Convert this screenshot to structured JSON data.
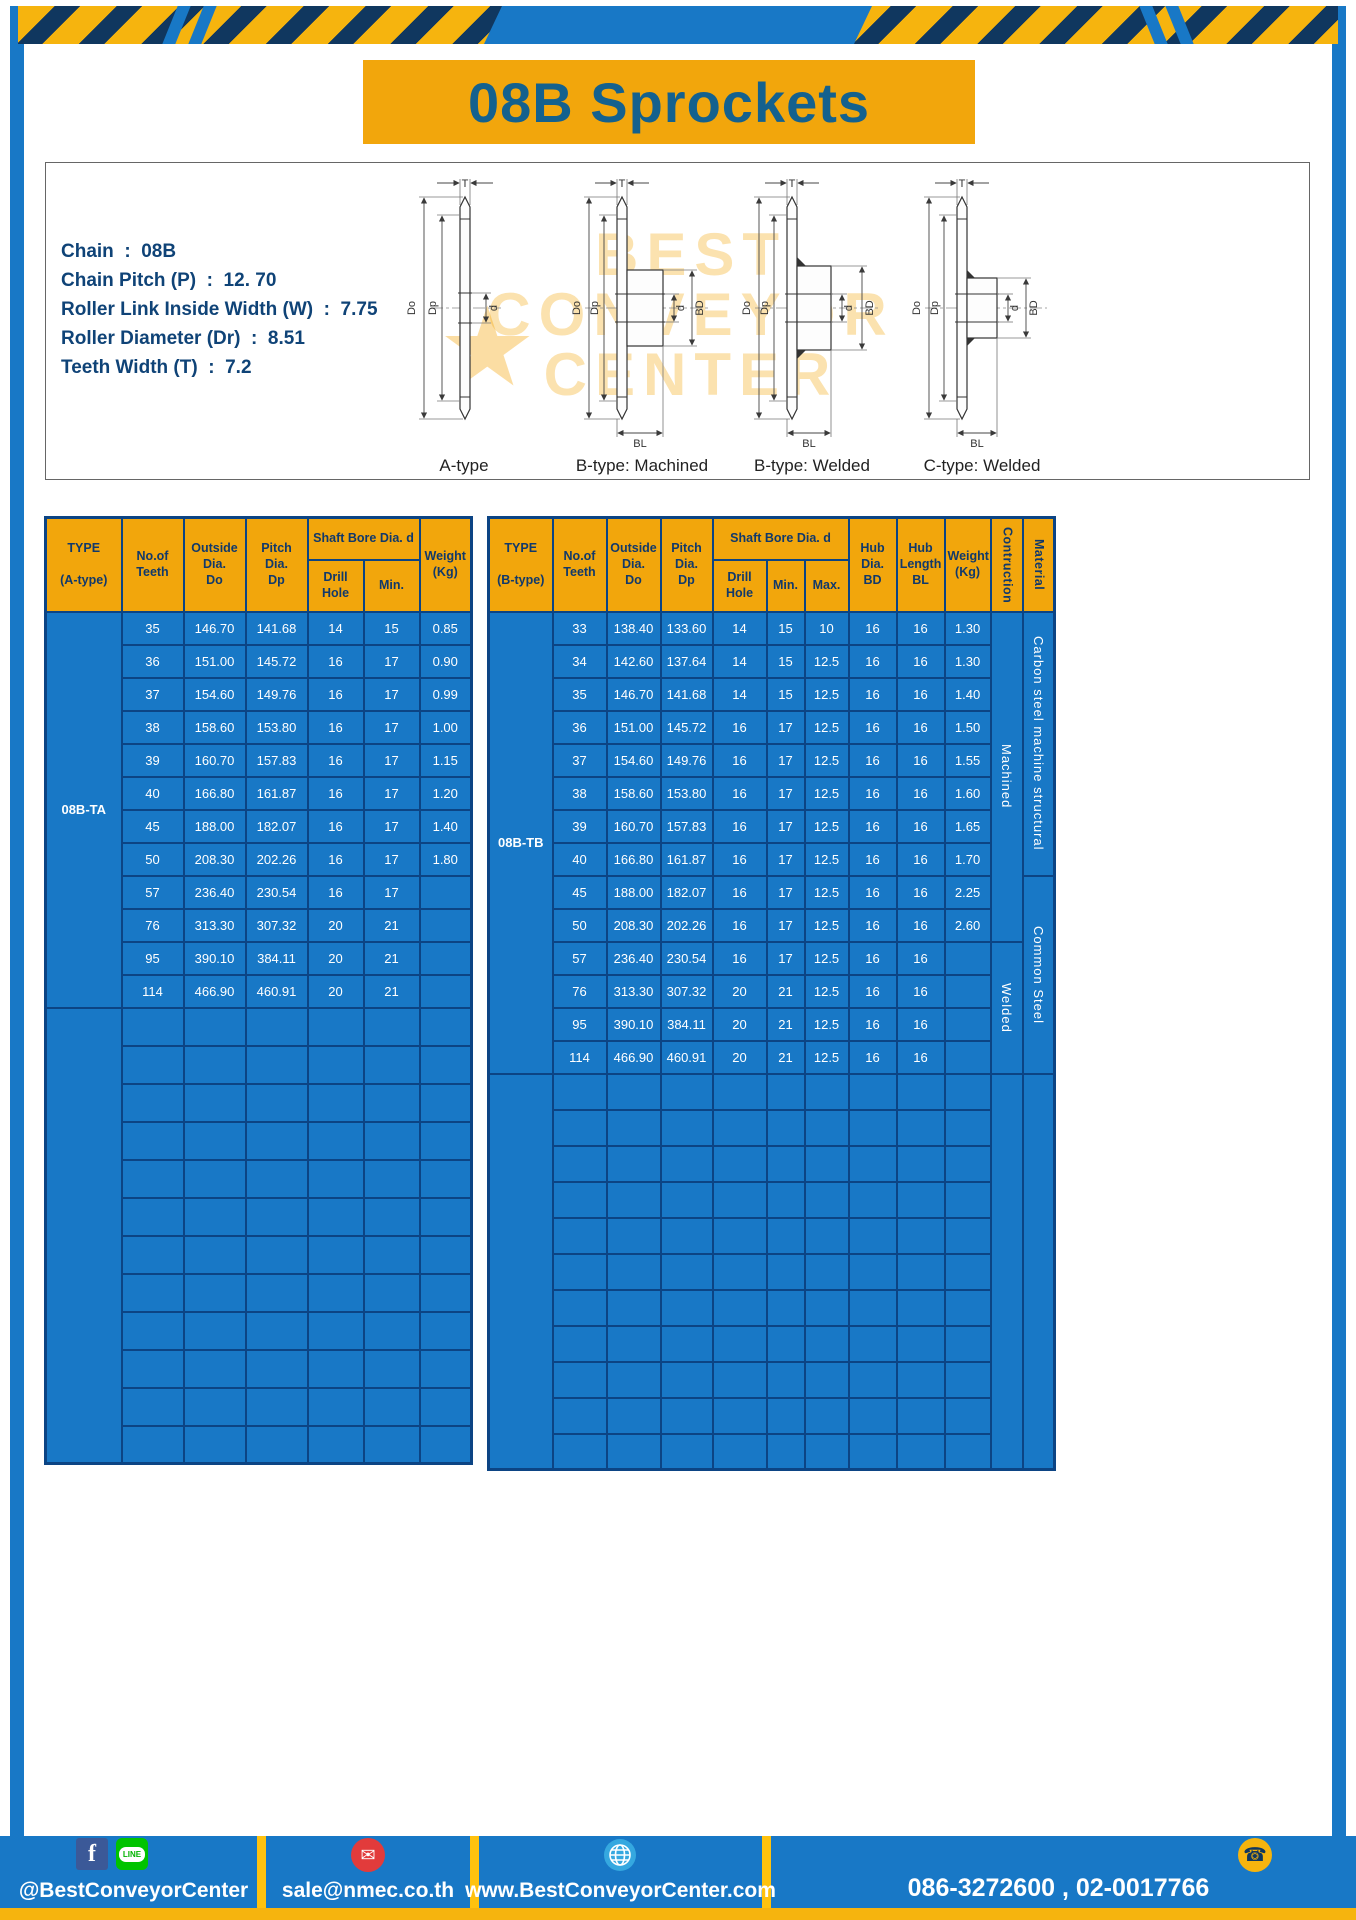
{
  "page": {
    "title": "08B Sprockets"
  },
  "specs": {
    "lines": [
      "Chain  :  08B",
      "Chain Pitch (P)  :  12. 70",
      "Roller Link Inside Width (W)  :  7.75",
      "Roller Diameter (Dr)  :  8.51",
      "Teeth Width (T)  :  7.2"
    ]
  },
  "diagram": {
    "figures": [
      {
        "caption": "A-type"
      },
      {
        "caption": "B-type: Machined"
      },
      {
        "caption": "B-type: Welded"
      },
      {
        "caption": "C-type: Welded"
      }
    ],
    "dims": {
      "T": "T",
      "Do": "Do",
      "Dp": "Dp",
      "d": "d",
      "BD": "BD",
      "BL": "BL"
    },
    "watermark": {
      "line1": "BEST",
      "line2": "CONVEYOR",
      "line3": "CENTER",
      "star": "★"
    }
  },
  "table_a": {
    "headers": {
      "type": "TYPE\n\n(A-type)",
      "teeth": "No.of\nTeeth",
      "outside": "Outside\nDia.\nDo",
      "pitch": "Pitch Dia.\nDp",
      "shaft_group": "Shaft Bore Dia. d",
      "drill": "Drill Hole",
      "min": "Min.",
      "weight": "Weight\n(Kg)"
    },
    "type_label": "08B-TA",
    "rows": [
      [
        "35",
        "146.70",
        "141.68",
        "14",
        "15",
        "0.85"
      ],
      [
        "36",
        "151.00",
        "145.72",
        "16",
        "17",
        "0.90"
      ],
      [
        "37",
        "154.60",
        "149.76",
        "16",
        "17",
        "0.99"
      ],
      [
        "38",
        "158.60",
        "153.80",
        "16",
        "17",
        "1.00"
      ],
      [
        "39",
        "160.70",
        "157.83",
        "16",
        "17",
        "1.15"
      ],
      [
        "40",
        "166.80",
        "161.87",
        "16",
        "17",
        "1.20"
      ],
      [
        "45",
        "188.00",
        "182.07",
        "16",
        "17",
        "1.40"
      ],
      [
        "50",
        "208.30",
        "202.26",
        "16",
        "17",
        "1.80"
      ],
      [
        "57",
        "236.40",
        "230.54",
        "16",
        "17",
        ""
      ],
      [
        "76",
        "313.30",
        "307.32",
        "20",
        "21",
        ""
      ],
      [
        "95",
        "390.10",
        "384.11",
        "20",
        "21",
        ""
      ],
      [
        "114",
        "466.90",
        "460.91",
        "20",
        "21",
        ""
      ]
    ],
    "empty_rows": 12
  },
  "table_b": {
    "headers": {
      "type": "TYPE\n\n(B-type)",
      "teeth": "No.of\nTeeth",
      "outside": "Outside\nDia.\nDo",
      "pitch": "Pitch Dia.\nDp",
      "shaft_group": "Shaft Bore Dia. d",
      "drill": "Drill Hole",
      "min": "Min.",
      "max": "Max.",
      "hub_dia": "Hub Dia.\nBD",
      "hub_len": "Hub\nLength\nBL",
      "weight": "Weight\n(Kg)",
      "construction": "Contruction",
      "material": "Material"
    },
    "type_label": "08B-TB",
    "rows": [
      [
        "33",
        "138.40",
        "133.60",
        "14",
        "15",
        "10",
        "16",
        "16",
        "1.30"
      ],
      [
        "34",
        "142.60",
        "137.64",
        "14",
        "15",
        "12.5",
        "16",
        "16",
        "1.30"
      ],
      [
        "35",
        "146.70",
        "141.68",
        "14",
        "15",
        "12.5",
        "16",
        "16",
        "1.40"
      ],
      [
        "36",
        "151.00",
        "145.72",
        "16",
        "17",
        "12.5",
        "16",
        "16",
        "1.50"
      ],
      [
        "37",
        "154.60",
        "149.76",
        "16",
        "17",
        "12.5",
        "16",
        "16",
        "1.55"
      ],
      [
        "38",
        "158.60",
        "153.80",
        "16",
        "17",
        "12.5",
        "16",
        "16",
        "1.60"
      ],
      [
        "39",
        "160.70",
        "157.83",
        "16",
        "17",
        "12.5",
        "16",
        "16",
        "1.65"
      ],
      [
        "40",
        "166.80",
        "161.87",
        "16",
        "17",
        "12.5",
        "16",
        "16",
        "1.70"
      ],
      [
        "45",
        "188.00",
        "182.07",
        "16",
        "17",
        "12.5",
        "16",
        "16",
        "2.25"
      ],
      [
        "50",
        "208.30",
        "202.26",
        "16",
        "17",
        "12.5",
        "16",
        "16",
        "2.60"
      ],
      [
        "57",
        "236.40",
        "230.54",
        "16",
        "17",
        "12.5",
        "16",
        "16",
        ""
      ],
      [
        "76",
        "313.30",
        "307.32",
        "20",
        "21",
        "12.5",
        "16",
        "16",
        ""
      ],
      [
        "95",
        "390.10",
        "384.11",
        "20",
        "21",
        "12.5",
        "16",
        "16",
        ""
      ],
      [
        "114",
        "466.90",
        "460.91",
        "20",
        "21",
        "12.5",
        "16",
        "16",
        ""
      ]
    ],
    "construction": [
      {
        "label": "Machined",
        "span": 10
      },
      {
        "label": "Welded",
        "span": 4
      }
    ],
    "material": [
      {
        "label": "Carbon steel  machine structural",
        "span": 8
      },
      {
        "label": "Common Steel",
        "span": 6
      }
    ],
    "empty_rows": 11
  },
  "footer": {
    "social_handle": "@BestConveyorCenter",
    "email": "sale@nmec.co.th",
    "website": "www.BestConveyorCenter.com",
    "phone": "086-3272600 , 02-0017766",
    "icons": {
      "facebook": "f",
      "line": "LINE",
      "mail": "✉",
      "phone": "☎"
    }
  },
  "colors": {
    "accent_yellow": "#F2A60C",
    "body_blue": "#1878C6",
    "grid_navy": "#0C4484",
    "header_text": "#11396B",
    "title_text": "#14618E"
  }
}
